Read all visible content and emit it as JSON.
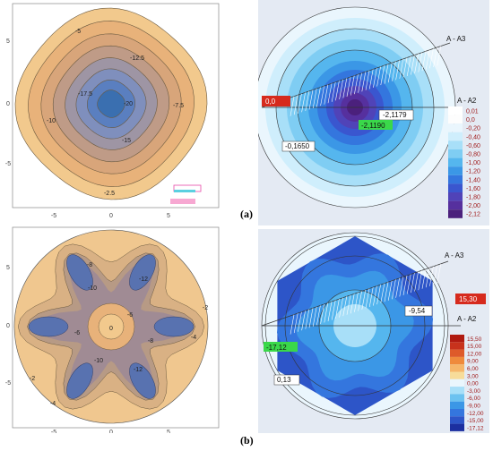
{
  "figure_labels": {
    "a": "(a)",
    "b": "(b)"
  },
  "colors": {
    "fig_a_left": [
      "#f2c98d",
      "#e8b27a",
      "#d8a57a",
      "#bf9b87",
      "#9e95a4",
      "#7f8fbd",
      "#5a7fc0",
      "#3a6fb0"
    ],
    "fig_a_right": [
      "#eaf6fd",
      "#cfeefc",
      "#a8dff8",
      "#7fcdf3",
      "#55b6ee",
      "#3b97e6",
      "#3476de",
      "#3a56cf",
      "#5043b8",
      "#56309e",
      "#4b207c"
    ],
    "fig_b_left_bg": "#f0c78f",
    "fig_b_right": [
      "#eaf6fd",
      "#a8dff8",
      "#55b6ee",
      "#3b97e6",
      "#3476de",
      "#2d55c8"
    ]
  },
  "chart_data": [
    {
      "type": "heatmap",
      "panel": "a-left",
      "x_ticks": [
        "-5",
        "0",
        "5"
      ],
      "y_ticks": [
        "5",
        "0",
        "-5"
      ],
      "contour_labels": [
        "-5",
        "-12.5",
        "-17.5",
        "-20",
        "-10",
        "-15",
        "-7.5",
        "-2.5"
      ],
      "contour_values": [
        -2.5,
        -5,
        -7.5,
        -10,
        -12.5,
        -15,
        -17.5,
        -20
      ]
    },
    {
      "type": "heatmap",
      "panel": "a-right",
      "section_labels": [
        "A - A3",
        "A - A2"
      ],
      "value_labels": [
        "0,0",
        "-2,1179",
        "-2,1190",
        "-0,1650"
      ],
      "legend": [
        "0,01",
        "0,0",
        "-0,20",
        "-0,40",
        "-0,60",
        "-0,80",
        "-1,00",
        "-1,20",
        "-1,40",
        "-1,60",
        "-1,80",
        "-2,00",
        "-2,12"
      ]
    },
    {
      "type": "heatmap",
      "panel": "b-left",
      "x_ticks": [
        "-5",
        "0",
        "5"
      ],
      "y_ticks": [
        "5",
        "0",
        "-5"
      ],
      "contour_labels": [
        "-8",
        "-12",
        "-10",
        "-6",
        "-4",
        "-2",
        "0",
        "-2",
        "-4",
        "-12",
        "-10",
        "-8",
        "-6"
      ]
    },
    {
      "type": "heatmap",
      "panel": "b-right",
      "section_labels": [
        "A - A3",
        "A - A2"
      ],
      "value_labels": [
        "15,30",
        "-9,54",
        "-17,12",
        "0,13"
      ],
      "legend": [
        "15,50",
        "15,00",
        "12,00",
        "9,00",
        "6,00",
        "3,00",
        "0,00",
        "-3,00",
        "-6,00",
        "-9,00",
        "-12,00",
        "-15,00",
        "-17,12"
      ]
    }
  ]
}
